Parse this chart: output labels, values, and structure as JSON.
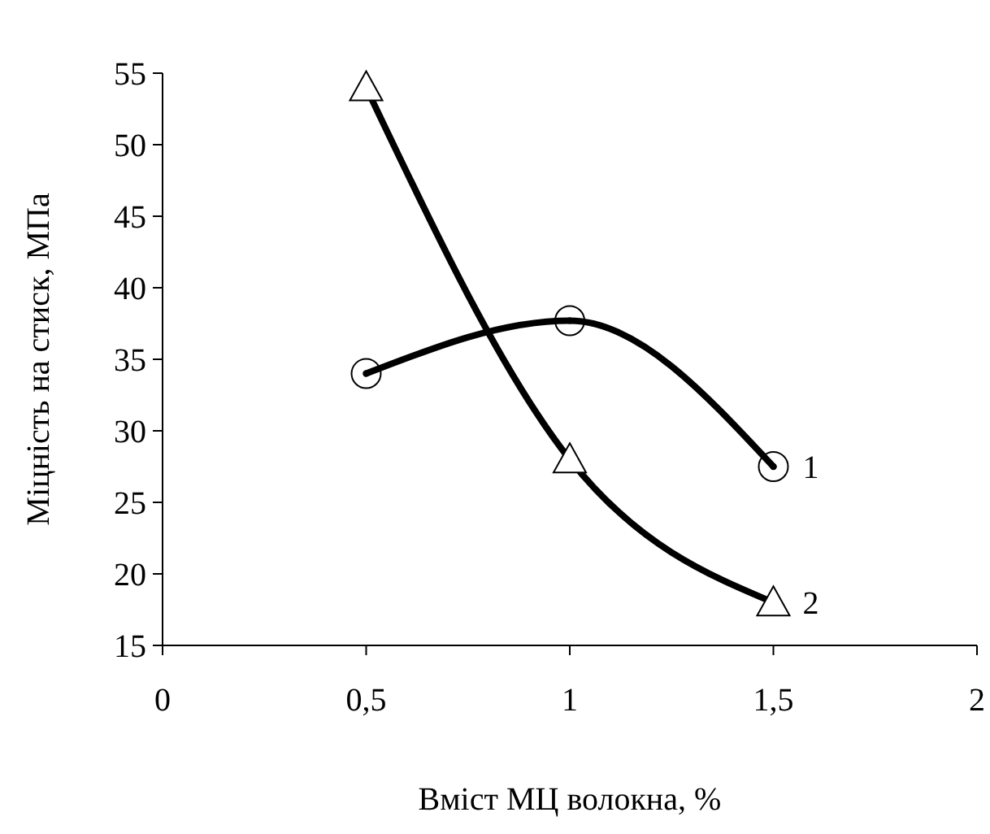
{
  "chart_data": {
    "type": "line",
    "xlabel": "Вміст МЦ волокна, %",
    "ylabel": "Міцність на стиск, МПа",
    "x": [
      0.5,
      1,
      1.5
    ],
    "series": [
      {
        "name": "1",
        "color": "#000000",
        "marker": "circle",
        "values": [
          34,
          37.7,
          27.5
        ]
      },
      {
        "name": "2",
        "color": "#000000",
        "marker": "triangle",
        "values": [
          54,
          28,
          18
        ]
      }
    ],
    "xlim": [
      0,
      2
    ],
    "xticks": [
      0,
      {
        "value": 0.5,
        "label": "0,5"
      },
      1,
      {
        "value": 1.5,
        "label": "1,5"
      },
      2
    ],
    "ylim": [
      15,
      55
    ],
    "yticks": [
      15,
      20,
      25,
      30,
      35,
      40,
      45,
      50,
      55
    ],
    "grid": false,
    "legend": false,
    "line_style": "solid"
  }
}
